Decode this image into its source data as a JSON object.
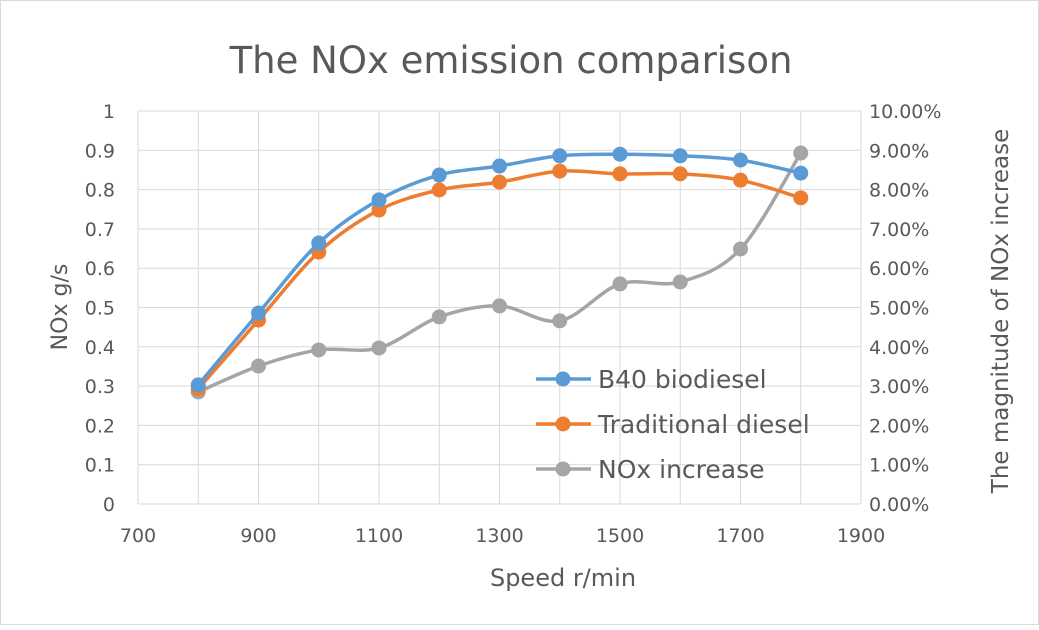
{
  "chart_data": {
    "type": "line",
    "title": "The NOx emission comparison",
    "xlabel": "Speed r/min",
    "ylabel": "NOx g/s",
    "y2label": "The magnitude of NOx increase",
    "xlim": [
      700,
      1900
    ],
    "ylim": [
      0,
      1
    ],
    "y2lim": [
      0,
      0.1
    ],
    "grid": true,
    "legend_position": "bottom-right",
    "x_ticks": [
      "700",
      "900",
      "1100",
      "1300",
      "1500",
      "1700",
      "1900"
    ],
    "y_ticks": [
      "0",
      "0.1",
      "0.2",
      "0.3",
      "0.4",
      "0.5",
      "0.6",
      "0.7",
      "0.8",
      "0.9",
      "1"
    ],
    "y2_ticks": [
      "0.00%",
      "1.00%",
      "2.00%",
      "3.00%",
      "4.00%",
      "5.00%",
      "6.00%",
      "7.00%",
      "8.00%",
      "9.00%",
      "10.00%"
    ],
    "x": [
      800,
      900,
      1000,
      1100,
      1200,
      1300,
      1400,
      1500,
      1600,
      1700,
      1800
    ],
    "series": [
      {
        "name": "B40 biodiesel",
        "axis": "left",
        "color": "#5b9bd5",
        "values": [
          0.303,
          0.486,
          0.664,
          0.774,
          0.837,
          0.86,
          0.886,
          0.89,
          0.886,
          0.875,
          0.842
        ]
      },
      {
        "name": "Traditional diesel",
        "axis": "left",
        "color": "#ed7d31",
        "values": [
          0.293,
          0.468,
          0.641,
          0.748,
          0.799,
          0.819,
          0.847,
          0.84,
          0.84,
          0.824,
          0.779
        ]
      },
      {
        "name": "NOx increase",
        "axis": "right",
        "color": "#a5a5a5",
        "values": [
          0.0285,
          0.0351,
          0.0392,
          0.0397,
          0.0476,
          0.0504,
          0.0466,
          0.056,
          0.0565,
          0.0649,
          0.0893
        ]
      }
    ]
  }
}
